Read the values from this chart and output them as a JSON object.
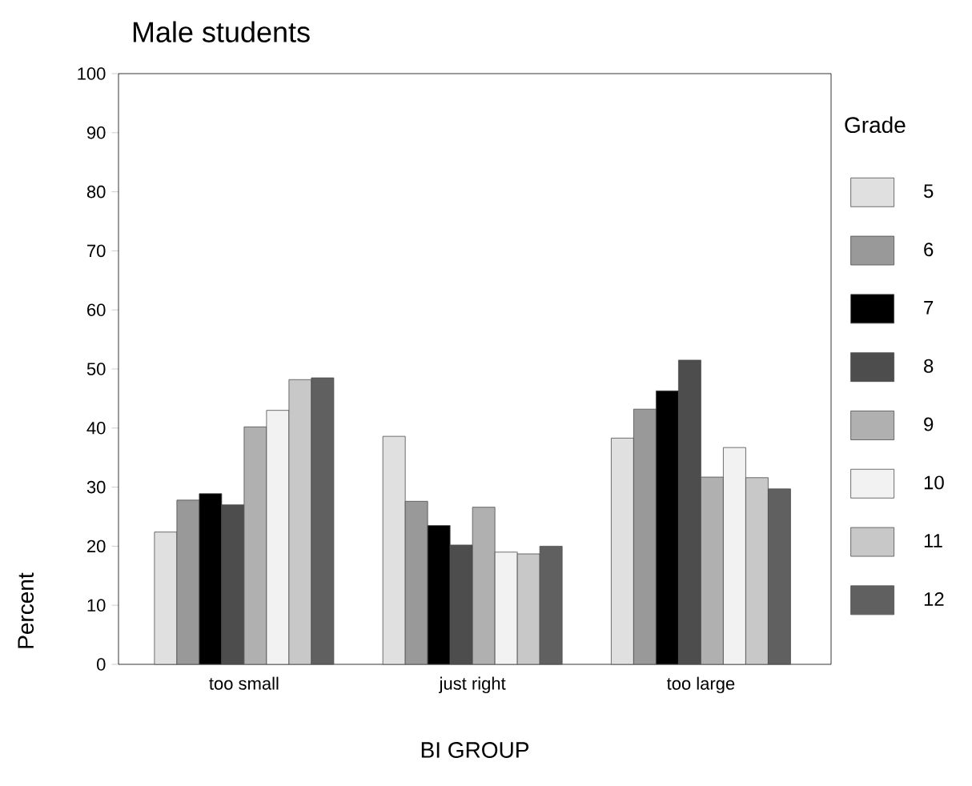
{
  "chart_data": {
    "type": "bar",
    "title": "Male students",
    "xlabel": "BI GROUP",
    "ylabel": "Percent",
    "legend_title": "Grade",
    "categories": [
      "too small",
      "just right",
      "too large"
    ],
    "series": [
      {
        "name": "5",
        "color": "#e0e0e0",
        "values": [
          22.4,
          38.6,
          38.3
        ]
      },
      {
        "name": "6",
        "color": "#999999",
        "values": [
          27.8,
          27.6,
          43.2
        ]
      },
      {
        "name": "7",
        "color": "#000000",
        "values": [
          28.9,
          23.5,
          46.3
        ]
      },
      {
        "name": "8",
        "color": "#4d4d4d",
        "values": [
          27.0,
          20.2,
          51.5
        ]
      },
      {
        "name": "9",
        "color": "#b0b0b0",
        "values": [
          40.2,
          26.6,
          31.7
        ]
      },
      {
        "name": "10",
        "color": "#f2f2f2",
        "values": [
          43.0,
          19.0,
          36.7
        ]
      },
      {
        "name": "11",
        "color": "#c8c8c8",
        "values": [
          48.2,
          18.7,
          31.6
        ]
      },
      {
        "name": "12",
        "color": "#606060",
        "values": [
          48.5,
          20.0,
          29.7
        ]
      }
    ],
    "ylim": [
      0,
      100
    ],
    "yticks": [
      0,
      10,
      20,
      30,
      40,
      50,
      60,
      70,
      80,
      90,
      100
    ],
    "grid": false,
    "legend": "right"
  }
}
